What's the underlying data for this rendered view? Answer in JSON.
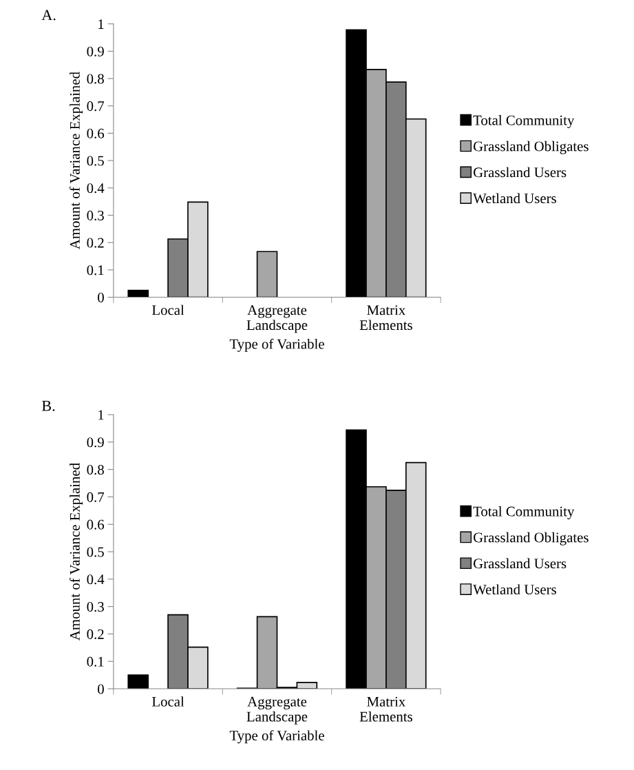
{
  "chart_data": [
    {
      "type": "bar",
      "title": "A.",
      "xlabel": "Type of Variable",
      "ylabel": "Amount of Variance Explained",
      "categories": [
        "Local",
        "Aggregate\nLandscape",
        "Matrix\nElements"
      ],
      "series": [
        {
          "name": "Total Community",
          "color": "#000000",
          "values": [
            0.025,
            null,
            0.978
          ]
        },
        {
          "name": "Grassland Obligates",
          "color": "#a6a6a6",
          "values": [
            null,
            0.167,
            0.833
          ]
        },
        {
          "name": "Grassland Users",
          "color": "#808080",
          "values": [
            0.213,
            null,
            0.787
          ]
        },
        {
          "name": "Wetland Users",
          "color": "#d9d9d9",
          "values": [
            0.348,
            null,
            0.652
          ]
        }
      ],
      "ylim": [
        0,
        1
      ],
      "yticks": [
        0,
        0.1,
        0.2,
        0.3,
        0.4,
        0.5,
        0.6,
        0.7,
        0.8,
        0.9,
        1
      ],
      "grid": false,
      "legend": "right"
    },
    {
      "type": "bar",
      "title": "B.",
      "xlabel": "Type of Variable",
      "ylabel": "Amount of Variance Explained",
      "categories": [
        "Local",
        "Aggregate\nLandscape",
        "Matrix\nElements"
      ],
      "series": [
        {
          "name": "Total Community",
          "color": "#000000",
          "values": [
            0.05,
            0.002,
            0.944
          ]
        },
        {
          "name": "Grassland Obligates",
          "color": "#a6a6a6",
          "values": [
            null,
            0.263,
            0.737
          ]
        },
        {
          "name": "Grassland Users",
          "color": "#808080",
          "values": [
            0.27,
            0.005,
            0.724
          ]
        },
        {
          "name": "Wetland Users",
          "color": "#d9d9d9",
          "values": [
            0.152,
            0.023,
            0.825
          ]
        }
      ],
      "ylim": [
        0,
        1
      ],
      "yticks": [
        0,
        0.1,
        0.2,
        0.3,
        0.4,
        0.5,
        0.6,
        0.7,
        0.8,
        0.9,
        1
      ],
      "grid": false,
      "legend": "right"
    }
  ]
}
